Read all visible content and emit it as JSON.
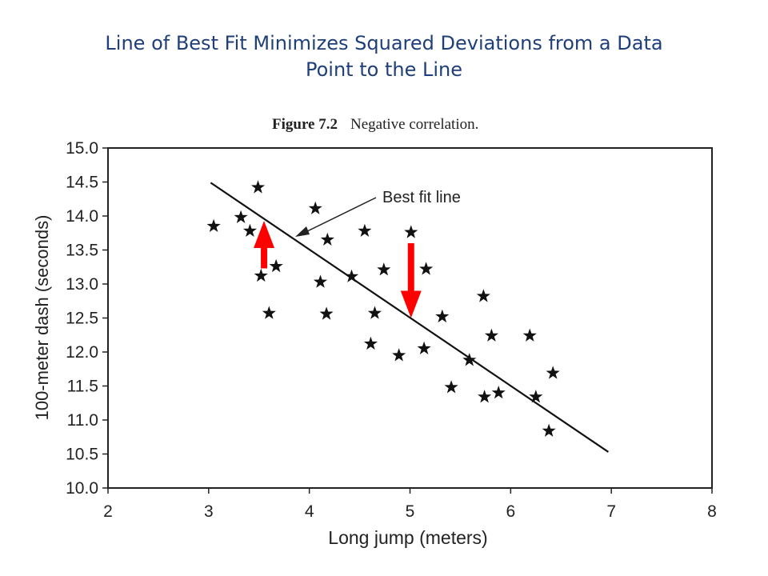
{
  "slide": {
    "title_line1": "Line of Best Fit Minimizes Squared Deviations from a Data",
    "title_line2": "Point to the Line"
  },
  "figure": {
    "number": "Figure 7.2",
    "caption": "Negative correlation."
  },
  "chart_data": {
    "type": "scatter",
    "xlabel": "Long jump (meters)",
    "ylabel": "100-meter dash (seconds)",
    "xlim": [
      2,
      8
    ],
    "ylim": [
      10.0,
      15.0
    ],
    "xticks": [
      2,
      3,
      4,
      5,
      6,
      7,
      8
    ],
    "yticks": [
      10.0,
      10.5,
      11.0,
      11.5,
      12.0,
      12.5,
      13.0,
      13.5,
      14.0,
      14.5,
      15.0
    ],
    "ytick_labels": [
      "10.0",
      "10.5",
      "11.0",
      "11.5",
      "12.0",
      "12.5",
      "13.0",
      "13.5",
      "14.0",
      "14.5",
      "15.0"
    ],
    "marker": "star",
    "points": [
      {
        "x": 3.05,
        "y": 13.85
      },
      {
        "x": 3.32,
        "y": 13.98
      },
      {
        "x": 3.41,
        "y": 13.78
      },
      {
        "x": 3.49,
        "y": 14.42
      },
      {
        "x": 3.52,
        "y": 13.12
      },
      {
        "x": 3.6,
        "y": 12.57
      },
      {
        "x": 3.67,
        "y": 13.26
      },
      {
        "x": 4.06,
        "y": 14.11
      },
      {
        "x": 4.11,
        "y": 13.03
      },
      {
        "x": 4.18,
        "y": 13.65
      },
      {
        "x": 4.17,
        "y": 12.56
      },
      {
        "x": 4.42,
        "y": 13.11
      },
      {
        "x": 4.55,
        "y": 13.78
      },
      {
        "x": 4.61,
        "y": 12.12
      },
      {
        "x": 4.65,
        "y": 12.57
      },
      {
        "x": 4.74,
        "y": 13.21
      },
      {
        "x": 4.89,
        "y": 11.95
      },
      {
        "x": 5.01,
        "y": 13.76
      },
      {
        "x": 5.14,
        "y": 12.05
      },
      {
        "x": 5.16,
        "y": 13.22
      },
      {
        "x": 5.32,
        "y": 12.52
      },
      {
        "x": 5.41,
        "y": 11.48
      },
      {
        "x": 5.59,
        "y": 11.88
      },
      {
        "x": 5.73,
        "y": 12.82
      },
      {
        "x": 5.74,
        "y": 11.34
      },
      {
        "x": 5.81,
        "y": 12.24
      },
      {
        "x": 5.88,
        "y": 11.4
      },
      {
        "x": 6.19,
        "y": 12.24
      },
      {
        "x": 6.25,
        "y": 11.34
      },
      {
        "x": 6.38,
        "y": 10.84
      },
      {
        "x": 6.42,
        "y": 11.69
      }
    ],
    "best_fit_line": {
      "x": [
        3.02,
        6.97
      ],
      "y": [
        14.49,
        10.53
      ]
    },
    "annotation": {
      "text": "Best fit line"
    },
    "deviation_arrows": [
      {
        "x": 3.55,
        "from_y": 13.23,
        "to_y": 13.93,
        "direction": "up",
        "color": "#ff0000"
      },
      {
        "x": 5.01,
        "from_y": 13.6,
        "to_y": 12.5,
        "direction": "down",
        "color": "#ff0000"
      }
    ],
    "grid": false,
    "legend": "none"
  }
}
